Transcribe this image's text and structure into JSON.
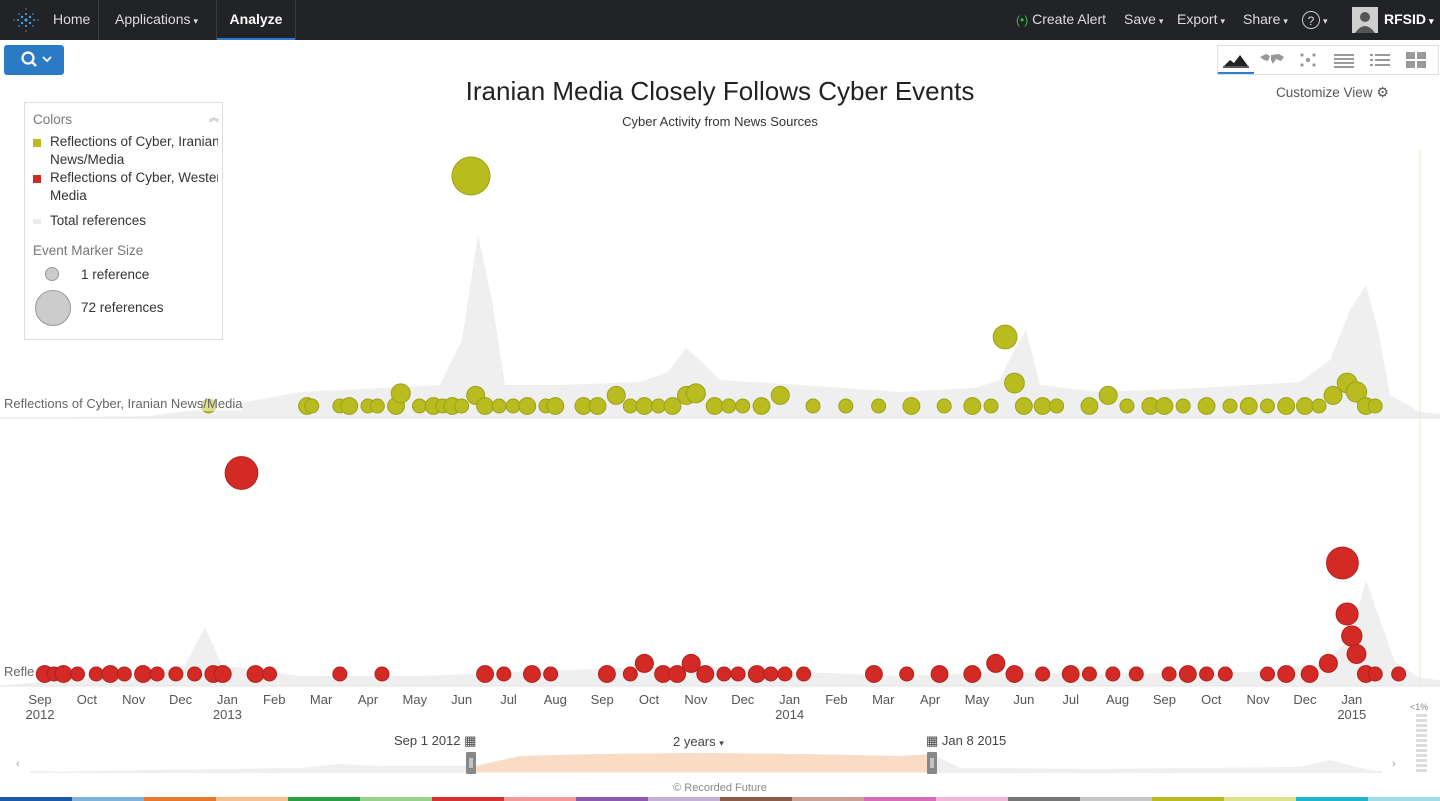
{
  "nav": {
    "home": "Home",
    "applications": "Applications",
    "analyze": "Analyze",
    "create_alert": "Create Alert",
    "save": "Save",
    "export": "Export",
    "share": "Share",
    "help": "?",
    "user": "RFSID"
  },
  "toolbar": {
    "customize": "Customize View",
    "views": [
      "timeline-view-icon",
      "map-view-icon",
      "network-view-icon",
      "table-view-icon",
      "list-view-icon",
      "dashboard-view-icon"
    ]
  },
  "chart_title": "Iranian Media Closely Follows Cyber Events",
  "chart_subtitle": "Cyber Activity from News Sources",
  "legend": {
    "colors_heading": "Colors",
    "items": [
      {
        "line1": "Reflections of Cyber, Iranian",
        "line2": "News/Media",
        "color": "#b8bc1e"
      },
      {
        "line1": "Reflections of Cyber, Western",
        "line2": "Media",
        "color": "#d42a26"
      },
      {
        "line1": "Total references",
        "color": "#ececec"
      }
    ],
    "size_heading": "Event Marker Size",
    "size_small": "1 reference",
    "size_large": "72 references"
  },
  "bands": {
    "iranian": "Reflections of Cyber, Iranian News/Media",
    "western": "Reflections of Cyber, Western Media"
  },
  "chart_data": {
    "type": "scatter",
    "x_axis": {
      "ticks": [
        {
          "m": "Sep",
          "y": "2012"
        },
        {
          "m": "Oct"
        },
        {
          "m": "Nov"
        },
        {
          "m": "Dec"
        },
        {
          "m": "Jan",
          "y": "2013"
        },
        {
          "m": "Feb"
        },
        {
          "m": "Mar"
        },
        {
          "m": "Apr"
        },
        {
          "m": "May"
        },
        {
          "m": "Jun"
        },
        {
          "m": "Jul"
        },
        {
          "m": "Aug"
        },
        {
          "m": "Sep"
        },
        {
          "m": "Oct"
        },
        {
          "m": "Nov"
        },
        {
          "m": "Dec"
        },
        {
          "m": "Jan",
          "y": "2014"
        },
        {
          "m": "Feb"
        },
        {
          "m": "Mar"
        },
        {
          "m": "Apr"
        },
        {
          "m": "May"
        },
        {
          "m": "Jun"
        },
        {
          "m": "Jul"
        },
        {
          "m": "Aug"
        },
        {
          "m": "Sep"
        },
        {
          "m": "Oct"
        },
        {
          "m": "Nov"
        },
        {
          "m": "Dec"
        },
        {
          "m": "Jan",
          "y": "2015"
        }
      ]
    },
    "series": [
      {
        "name": "Reflections of Cyber, Iranian News/Media",
        "color": "#b8bc1e",
        "points": [
          [
            3.6,
            1
          ],
          [
            5.7,
            2
          ],
          [
            5.8,
            1
          ],
          [
            6.4,
            1
          ],
          [
            6.6,
            2
          ],
          [
            7.0,
            1
          ],
          [
            7.2,
            1
          ],
          [
            7.6,
            2
          ],
          [
            7.7,
            4
          ],
          [
            8.1,
            1
          ],
          [
            8.4,
            2
          ],
          [
            8.6,
            1
          ],
          [
            8.8,
            2
          ],
          [
            9.0,
            1
          ],
          [
            9.2,
            72
          ],
          [
            9.3,
            3
          ],
          [
            9.5,
            2
          ],
          [
            9.8,
            1
          ],
          [
            10.1,
            1
          ],
          [
            10.4,
            2
          ],
          [
            10.8,
            1
          ],
          [
            11.0,
            2
          ],
          [
            11.6,
            2
          ],
          [
            11.9,
            2
          ],
          [
            12.3,
            3
          ],
          [
            12.6,
            1
          ],
          [
            12.9,
            2
          ],
          [
            13.2,
            1
          ],
          [
            13.5,
            2
          ],
          [
            13.8,
            3
          ],
          [
            14.0,
            4
          ],
          [
            14.4,
            2
          ],
          [
            14.7,
            1
          ],
          [
            15.0,
            1
          ],
          [
            15.4,
            2
          ],
          [
            15.8,
            3
          ],
          [
            16.5,
            1
          ],
          [
            17.2,
            1
          ],
          [
            17.9,
            1
          ],
          [
            18.6,
            2
          ],
          [
            19.3,
            1
          ],
          [
            19.9,
            2
          ],
          [
            20.3,
            1
          ],
          [
            20.6,
            13
          ],
          [
            20.8,
            5
          ],
          [
            21.0,
            2
          ],
          [
            21.4,
            2
          ],
          [
            21.7,
            1
          ],
          [
            22.4,
            2
          ],
          [
            22.8,
            3
          ],
          [
            23.2,
            1
          ],
          [
            23.7,
            2
          ],
          [
            24.0,
            2
          ],
          [
            24.4,
            1
          ],
          [
            24.9,
            2
          ],
          [
            25.4,
            1
          ],
          [
            25.8,
            2
          ],
          [
            26.2,
            1
          ],
          [
            26.6,
            2
          ],
          [
            27.0,
            2
          ],
          [
            27.3,
            1
          ],
          [
            27.6,
            3
          ],
          [
            27.9,
            5
          ],
          [
            28.1,
            6
          ],
          [
            28.3,
            2
          ],
          [
            28.5,
            1
          ]
        ]
      },
      {
        "name": "Reflections of Cyber, Western Media",
        "color": "#d42a26",
        "points": [
          [
            0.1,
            2
          ],
          [
            0.3,
            1
          ],
          [
            0.5,
            2
          ],
          [
            0.8,
            1
          ],
          [
            1.2,
            1
          ],
          [
            1.5,
            2
          ],
          [
            1.8,
            1
          ],
          [
            2.2,
            2
          ],
          [
            2.5,
            1
          ],
          [
            2.9,
            1
          ],
          [
            3.3,
            1
          ],
          [
            3.7,
            2
          ],
          [
            3.9,
            2
          ],
          [
            4.3,
            44
          ],
          [
            4.6,
            2
          ],
          [
            4.9,
            1
          ],
          [
            6.4,
            1
          ],
          [
            7.3,
            1
          ],
          [
            9.5,
            2
          ],
          [
            9.9,
            1
          ],
          [
            10.5,
            2
          ],
          [
            10.9,
            1
          ],
          [
            12.1,
            2
          ],
          [
            12.6,
            1
          ],
          [
            12.9,
            3
          ],
          [
            13.3,
            2
          ],
          [
            13.6,
            2
          ],
          [
            13.9,
            3
          ],
          [
            14.2,
            2
          ],
          [
            14.6,
            1
          ],
          [
            14.9,
            1
          ],
          [
            15.3,
            2
          ],
          [
            15.6,
            1
          ],
          [
            15.9,
            1
          ],
          [
            16.3,
            1
          ],
          [
            17.8,
            2
          ],
          [
            18.5,
            1
          ],
          [
            19.2,
            2
          ],
          [
            19.9,
            2
          ],
          [
            20.4,
            3
          ],
          [
            20.8,
            2
          ],
          [
            21.4,
            1
          ],
          [
            22.0,
            2
          ],
          [
            22.4,
            1
          ],
          [
            22.9,
            1
          ],
          [
            23.4,
            1
          ],
          [
            24.1,
            1
          ],
          [
            24.5,
            2
          ],
          [
            24.9,
            1
          ],
          [
            25.3,
            1
          ],
          [
            26.2,
            1
          ],
          [
            26.6,
            2
          ],
          [
            27.1,
            2
          ],
          [
            27.5,
            3
          ],
          [
            27.8,
            40
          ],
          [
            27.9,
            9
          ],
          [
            28.0,
            6
          ],
          [
            28.1,
            4
          ],
          [
            28.3,
            2
          ],
          [
            28.5,
            1
          ],
          [
            29.0,
            1
          ]
        ]
      }
    ]
  },
  "timeline": {
    "start": "Sep 1 2012",
    "end": "Jan 8 2015",
    "range": "2 years",
    "pct": "<1%"
  },
  "footer": "© Recorded Future"
}
